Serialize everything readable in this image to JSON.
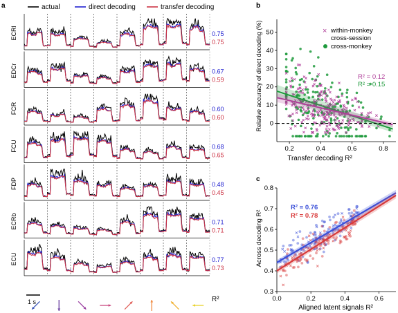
{
  "panel_labels": {
    "a": "a",
    "b": "b",
    "c": "c"
  },
  "chart_data": [
    {
      "panel": "a",
      "type": "line",
      "legend": [
        "actual",
        "direct decoding",
        "transfer decoding"
      ],
      "colors": {
        "actual": "#000000",
        "direct": "#1f1fd0",
        "transfer": "#cc3344"
      },
      "muscles": [
        {
          "name": "ECRl",
          "r2_direct": "0.75",
          "r2_transfer": "0.75"
        },
        {
          "name": "EDCr",
          "r2_direct": "0.67",
          "r2_transfer": "0.59"
        },
        {
          "name": "FCR",
          "r2_direct": "0.60",
          "r2_transfer": "0.60"
        },
        {
          "name": "FCU",
          "r2_direct": "0.68",
          "r2_transfer": "0.65"
        },
        {
          "name": "FDP",
          "r2_direct": "0.48",
          "r2_transfer": "0.45"
        },
        {
          "name": "ECRb",
          "r2_direct": "0.71",
          "r2_transfer": "0.71"
        },
        {
          "name": "ECU",
          "r2_direct": "0.77",
          "r2_transfer": "0.73"
        }
      ],
      "r2_label": "R²",
      "scale_bar": "1 s",
      "targets": [
        {
          "angle": 225,
          "color": "#3a55b8"
        },
        {
          "angle": 270,
          "color": "#6a3fa0"
        },
        {
          "angle": 315,
          "color": "#9a3fa0"
        },
        {
          "angle": 0,
          "color": "#c8407a"
        },
        {
          "angle": 45,
          "color": "#e0605a"
        },
        {
          "angle": 90,
          "color": "#f08a40"
        },
        {
          "angle": 135,
          "color": "#f0b030"
        },
        {
          "angle": 180,
          "color": "#e8d020"
        }
      ],
      "trials": [
        [
          [
            0.1,
            0.62,
            0.55,
            0.65,
            0.1
          ],
          [
            0.12,
            0.6,
            0.52,
            0.58,
            0.12
          ],
          [
            0.08,
            0.35,
            0.4,
            0.38,
            0.08
          ],
          [
            0.05,
            0.2,
            0.25,
            0.22,
            0.05
          ],
          [
            0.1,
            0.55,
            0.6,
            0.52,
            0.1
          ],
          [
            0.15,
            0.8,
            0.9,
            0.85,
            0.15
          ],
          [
            0.2,
            0.95,
            0.85,
            0.92,
            0.2
          ],
          [
            0.15,
            0.75,
            0.88,
            0.7,
            0.15
          ]
        ],
        [
          [
            0.15,
            0.55,
            0.6,
            0.5,
            0.15
          ],
          [
            0.2,
            0.7,
            0.65,
            0.72,
            0.2
          ],
          [
            0.12,
            0.4,
            0.38,
            0.42,
            0.12
          ],
          [
            0.1,
            0.3,
            0.35,
            0.28,
            0.1
          ],
          [
            0.15,
            0.6,
            0.55,
            0.62,
            0.15
          ],
          [
            0.2,
            0.8,
            0.85,
            0.78,
            0.2
          ],
          [
            0.25,
            0.9,
            0.8,
            0.88,
            0.25
          ],
          [
            0.2,
            0.65,
            0.7,
            0.6,
            0.2
          ]
        ],
        [
          [
            0.1,
            0.45,
            0.5,
            0.42,
            0.1
          ],
          [
            0.08,
            0.35,
            0.3,
            0.38,
            0.08
          ],
          [
            0.06,
            0.25,
            0.28,
            0.22,
            0.06
          ],
          [
            0.1,
            0.55,
            0.6,
            0.52,
            0.1
          ],
          [
            0.12,
            0.7,
            0.75,
            0.68,
            0.12
          ],
          [
            0.2,
            0.9,
            0.95,
            0.85,
            0.2
          ],
          [
            0.15,
            0.65,
            0.55,
            0.6,
            0.15
          ],
          [
            0.1,
            0.45,
            0.5,
            0.4,
            0.1
          ]
        ],
        [
          [
            0.15,
            0.7,
            0.75,
            0.65,
            0.15
          ],
          [
            0.2,
            0.85,
            0.8,
            0.88,
            0.2
          ],
          [
            0.25,
            0.95,
            0.9,
            0.92,
            0.25
          ],
          [
            0.2,
            0.8,
            0.85,
            0.75,
            0.2
          ],
          [
            0.12,
            0.45,
            0.5,
            0.4,
            0.12
          ],
          [
            0.1,
            0.35,
            0.4,
            0.32,
            0.1
          ],
          [
            0.15,
            0.55,
            0.6,
            0.5,
            0.15
          ],
          [
            0.12,
            0.5,
            0.45,
            0.48,
            0.12
          ]
        ],
        [
          [
            0.1,
            0.55,
            0.6,
            0.5,
            0.1
          ],
          [
            0.2,
            0.9,
            0.85,
            0.92,
            0.2
          ],
          [
            0.15,
            0.7,
            0.75,
            0.65,
            0.15
          ],
          [
            0.12,
            0.55,
            0.5,
            0.58,
            0.12
          ],
          [
            0.1,
            0.4,
            0.45,
            0.38,
            0.1
          ],
          [
            0.12,
            0.5,
            0.55,
            0.48,
            0.12
          ],
          [
            0.15,
            0.7,
            0.65,
            0.72,
            0.15
          ],
          [
            0.12,
            0.6,
            0.55,
            0.58,
            0.12
          ]
        ],
        [
          [
            0.15,
            0.5,
            0.55,
            0.48,
            0.15
          ],
          [
            0.12,
            0.4,
            0.45,
            0.38,
            0.12
          ],
          [
            0.1,
            0.35,
            0.3,
            0.32,
            0.1
          ],
          [
            0.08,
            0.25,
            0.28,
            0.22,
            0.08
          ],
          [
            0.12,
            0.55,
            0.6,
            0.5,
            0.12
          ],
          [
            0.2,
            0.85,
            0.9,
            0.8,
            0.2
          ],
          [
            0.22,
            0.9,
            0.85,
            0.88,
            0.22
          ],
          [
            0.18,
            0.75,
            0.7,
            0.72,
            0.18
          ]
        ],
        [
          [
            0.2,
            0.85,
            0.8,
            0.88,
            0.2
          ],
          [
            0.15,
            0.65,
            0.7,
            0.6,
            0.15
          ],
          [
            0.1,
            0.4,
            0.45,
            0.38,
            0.1
          ],
          [
            0.08,
            0.3,
            0.28,
            0.32,
            0.08
          ],
          [
            0.1,
            0.45,
            0.5,
            0.42,
            0.1
          ],
          [
            0.15,
            0.65,
            0.7,
            0.6,
            0.15
          ],
          [
            0.18,
            0.75,
            0.8,
            0.72,
            0.18
          ],
          [
            0.15,
            0.7,
            0.65,
            0.68,
            0.15
          ]
        ]
      ]
    },
    {
      "panel": "b",
      "type": "scatter",
      "xlabel": "Transfer decoding R²",
      "ylabel": "Relative accuracy of direct decoding (%)",
      "xlim": [
        0.12,
        0.88
      ],
      "ylim": [
        -10,
        57
      ],
      "xticks": [
        "0.2",
        "0.4",
        "0.6",
        "0.8"
      ],
      "yticks": [
        "0",
        "10",
        "20",
        "30",
        "40",
        "50"
      ],
      "series": [
        {
          "name": "within-monkey cross-session",
          "name_line1": "within-monkey",
          "name_line2": "cross-session",
          "marker": "x",
          "color": "#b0409a",
          "r2_text": "R² = 0.12",
          "fit": {
            "slope": -20,
            "intercept": 16.5
          },
          "n": 230,
          "center": 0.42,
          "spread": 0.15
        },
        {
          "name": "cross-monkey",
          "marker": "circle",
          "color": "#1e9a3c",
          "r2_text": "R² = 0.15",
          "fit": {
            "slope": -28,
            "intercept": 21.0
          },
          "n": 210,
          "center": 0.4,
          "spread": 0.16
        }
      ],
      "zero_line": 0
    },
    {
      "panel": "c",
      "type": "scatter",
      "xlabel": "Aligned latent signals R²",
      "ylabel": "Across decoding R²",
      "xlim": [
        0,
        0.7
      ],
      "ylim": [
        0.3,
        0.8
      ],
      "xticks": [
        "0.0",
        "0.2",
        "0.4",
        "0.6"
      ],
      "yticks": [
        "0.3",
        "0.4",
        "0.5",
        "0.6",
        "0.7",
        "0.8"
      ],
      "series": [
        {
          "name": "direct",
          "color": "#3a4fd8",
          "r2_text": "R² = 0.76",
          "fit": {
            "slope": 0.48,
            "intercept": 0.44
          },
          "n": 130
        },
        {
          "name": "transfer",
          "color": "#d83a3a",
          "r2_text": "R² = 0.78",
          "fit": {
            "slope": 0.52,
            "intercept": 0.4
          },
          "n": 130
        }
      ],
      "x_range": [
        0.02,
        0.48
      ]
    }
  ]
}
